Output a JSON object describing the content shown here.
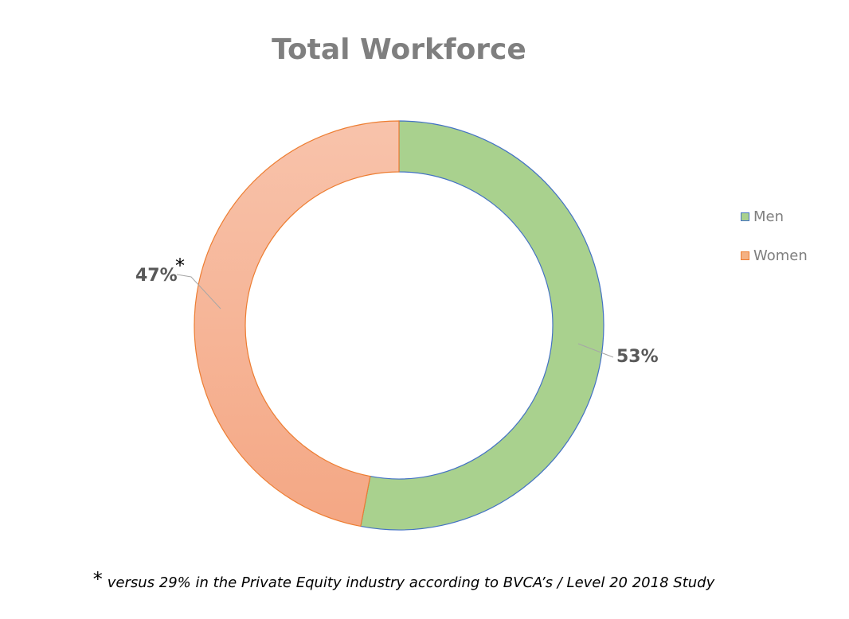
{
  "chart_data": {
    "type": "pie",
    "donut": true,
    "title": "Total Workforce",
    "categories": [
      "Men",
      "Women"
    ],
    "values": [
      53,
      47
    ],
    "data_labels": [
      "53%",
      "47%"
    ],
    "label_marker": "*",
    "legend": {
      "placement": "right",
      "entries": [
        "Men",
        "Women"
      ]
    },
    "colors": {
      "Men": "#a9d18e",
      "Women": "#f4b183",
      "men_border": "#4472c4",
      "women_border": "#ed7d31"
    }
  },
  "footnote": {
    "marker": "*",
    "text": "versus 29% in the Private Equity industry according to BVCA’s / Level 20  2018 Study"
  }
}
